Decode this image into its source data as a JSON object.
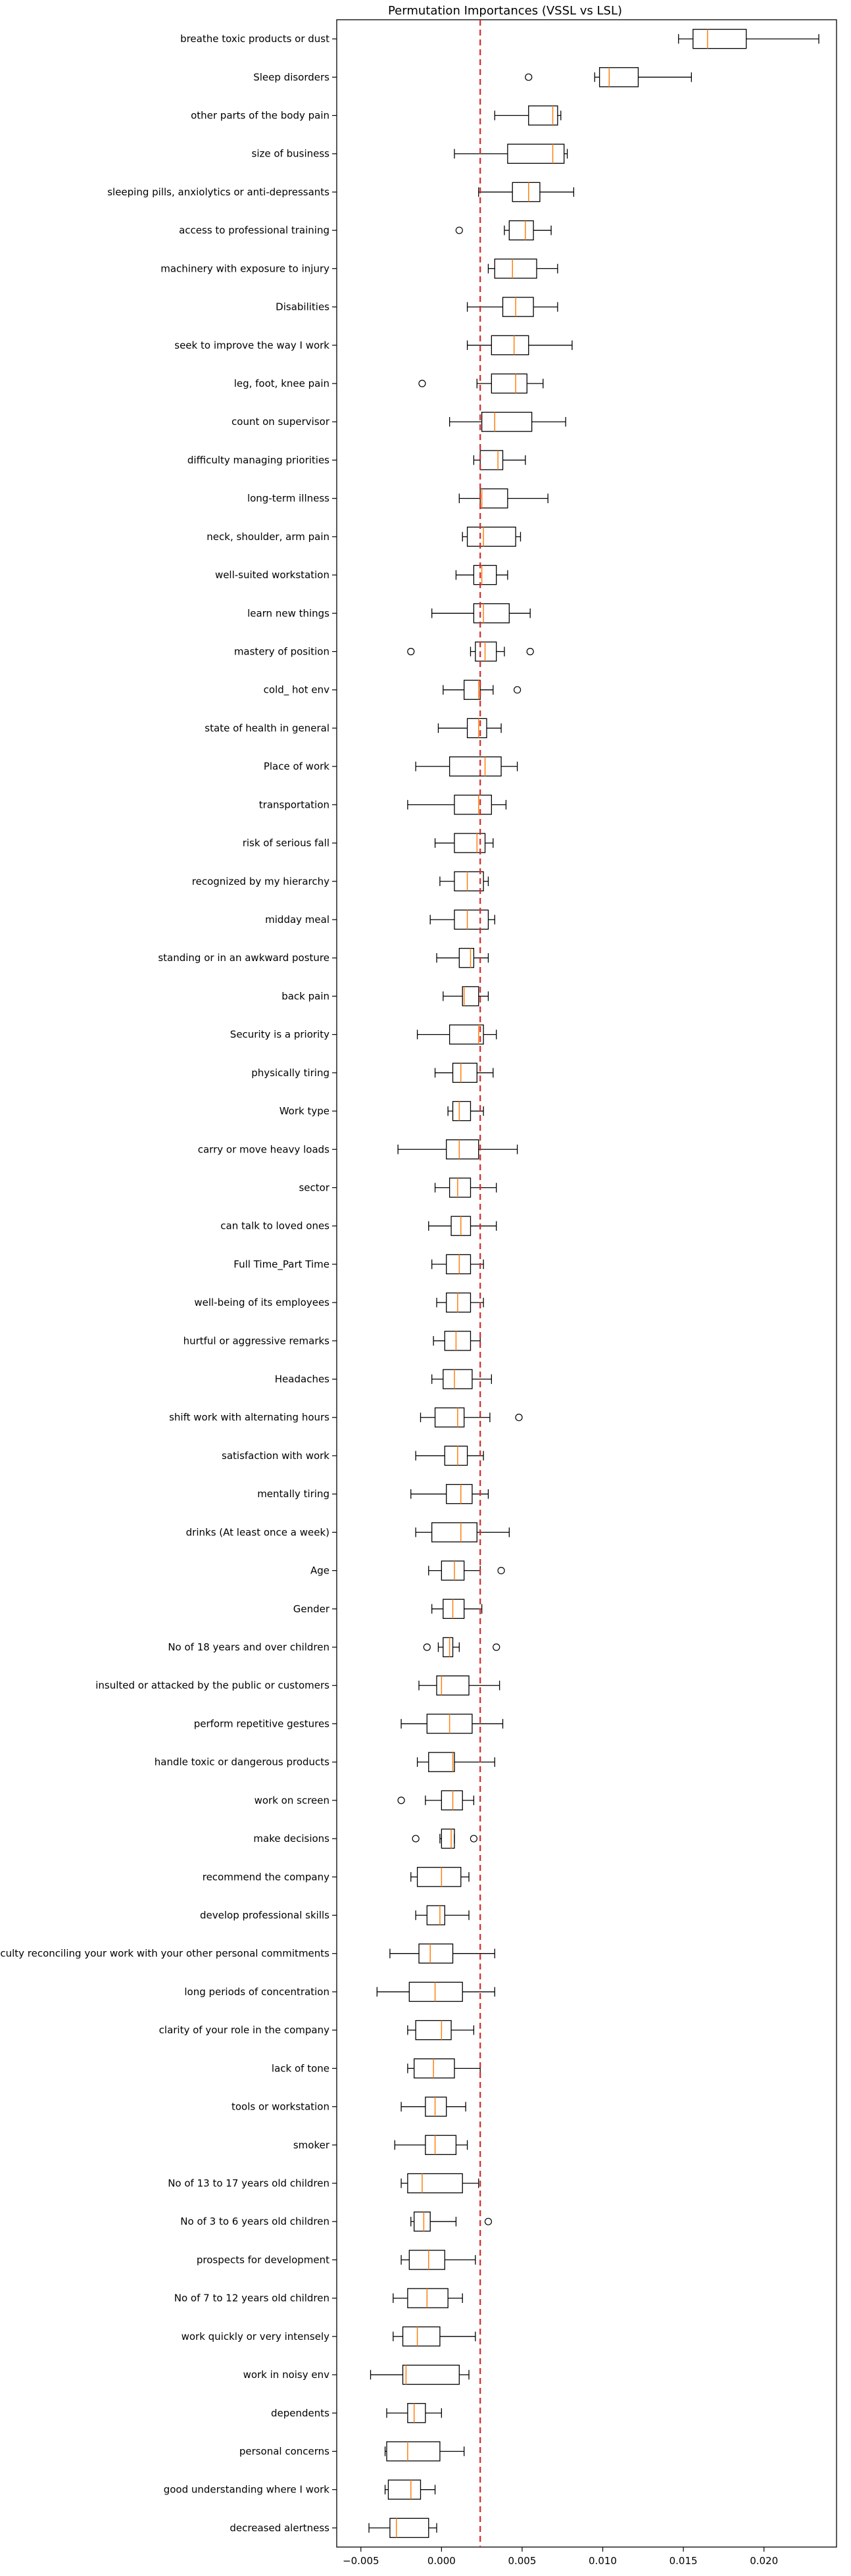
{
  "chart_data": {
    "type": "boxplot",
    "orientation": "horizontal",
    "title": "Permutation Importances (VSSL vs LSL)",
    "xlabel": "",
    "ylabel": "",
    "xlim": [
      -0.0065,
      0.0245
    ],
    "x_ticks": [
      -0.005,
      0.0,
      0.005,
      0.01,
      0.015,
      0.02
    ],
    "x_tick_labels": [
      "−0.005",
      "0.000",
      "0.005",
      "0.010",
      "0.015",
      "0.020"
    ],
    "reference_line": {
      "x": 0.0024,
      "style": "dashed",
      "color": "#d62728"
    },
    "colors": {
      "box": "#000000",
      "median": "#ff7f0e",
      "reference": "#d62728"
    },
    "features": [
      {
        "label": "breathe toxic products or dust",
        "whisker_low": 0.0147,
        "q1": 0.0156,
        "median": 0.0165,
        "q3": 0.0189,
        "whisker_high": 0.0234,
        "outliers": []
      },
      {
        "label": "Sleep disorders",
        "whisker_low": 0.0095,
        "q1": 0.0098,
        "median": 0.0104,
        "q3": 0.0122,
        "whisker_high": 0.0155,
        "outliers": [
          0.0054
        ]
      },
      {
        "label": "other parts of the body pain",
        "whisker_low": 0.0033,
        "q1": 0.0054,
        "median": 0.0069,
        "q3": 0.0072,
        "whisker_high": 0.0074,
        "outliers": []
      },
      {
        "label": "size of business",
        "whisker_low": 0.0008,
        "q1": 0.0041,
        "median": 0.0069,
        "q3": 0.0076,
        "whisker_high": 0.0078,
        "outliers": []
      },
      {
        "label": "sleeping pills, anxiolytics or anti-depressants",
        "whisker_low": 0.0023,
        "q1": 0.0044,
        "median": 0.0054,
        "q3": 0.0061,
        "whisker_high": 0.0082,
        "outliers": []
      },
      {
        "label": "access to professional training",
        "whisker_low": 0.0039,
        "q1": 0.0042,
        "median": 0.0052,
        "q3": 0.0057,
        "whisker_high": 0.0068,
        "outliers": [
          0.0011
        ]
      },
      {
        "label": "machinery with exposure to injury",
        "whisker_low": 0.0029,
        "q1": 0.0033,
        "median": 0.0044,
        "q3": 0.0059,
        "whisker_high": 0.0072,
        "outliers": []
      },
      {
        "label": "Disabilities",
        "whisker_low": 0.0016,
        "q1": 0.0038,
        "median": 0.0046,
        "q3": 0.0057,
        "whisker_high": 0.0072,
        "outliers": []
      },
      {
        "label": "seek to improve the way I work",
        "whisker_low": 0.0016,
        "q1": 0.0031,
        "median": 0.0045,
        "q3": 0.0054,
        "whisker_high": 0.0081,
        "outliers": []
      },
      {
        "label": "leg, foot, knee pain",
        "whisker_low": 0.0022,
        "q1": 0.0031,
        "median": 0.0046,
        "q3": 0.0053,
        "whisker_high": 0.0063,
        "outliers": [
          -0.0012
        ]
      },
      {
        "label": "count on supervisor",
        "whisker_low": 0.0005,
        "q1": 0.0025,
        "median": 0.0033,
        "q3": 0.0056,
        "whisker_high": 0.0077,
        "outliers": []
      },
      {
        "label": "difficulty managing priorities",
        "whisker_low": 0.002,
        "q1": 0.0024,
        "median": 0.0035,
        "q3": 0.0038,
        "whisker_high": 0.0052,
        "outliers": []
      },
      {
        "label": "long-term illness",
        "whisker_low": 0.0011,
        "q1": 0.0024,
        "median": 0.0025,
        "q3": 0.0041,
        "whisker_high": 0.0066,
        "outliers": []
      },
      {
        "label": "neck, shoulder, arm pain",
        "whisker_low": 0.0013,
        "q1": 0.0016,
        "median": 0.0026,
        "q3": 0.0046,
        "whisker_high": 0.0049,
        "outliers": []
      },
      {
        "label": "well-suited workstation",
        "whisker_low": 0.0009,
        "q1": 0.002,
        "median": 0.0025,
        "q3": 0.0034,
        "whisker_high": 0.0041,
        "outliers": []
      },
      {
        "label": "learn new things",
        "whisker_low": -0.0006,
        "q1": 0.002,
        "median": 0.0026,
        "q3": 0.0042,
        "whisker_high": 0.0055,
        "outliers": []
      },
      {
        "label": "mastery of position",
        "whisker_low": 0.0018,
        "q1": 0.0021,
        "median": 0.0027,
        "q3": 0.0034,
        "whisker_high": 0.0039,
        "outliers": [
          -0.0019,
          0.0055
        ]
      },
      {
        "label": "cold_ hot env",
        "whisker_low": 0.0001,
        "q1": 0.0014,
        "median": 0.0023,
        "q3": 0.0024,
        "whisker_high": 0.0032,
        "outliers": [
          0.0047
        ]
      },
      {
        "label": "state of health in general",
        "whisker_low": -0.0002,
        "q1": 0.0016,
        "median": 0.0023,
        "q3": 0.0028,
        "whisker_high": 0.0037,
        "outliers": []
      },
      {
        "label": "Place of work",
        "whisker_low": -0.0016,
        "q1": 0.0005,
        "median": 0.0027,
        "q3": 0.0037,
        "whisker_high": 0.0047,
        "outliers": []
      },
      {
        "label": "transportation",
        "whisker_low": -0.0021,
        "q1": 0.0008,
        "median": 0.0023,
        "q3": 0.0031,
        "whisker_high": 0.004,
        "outliers": []
      },
      {
        "label": "risk of serious fall",
        "whisker_low": -0.0004,
        "q1": 0.0008,
        "median": 0.0022,
        "q3": 0.0027,
        "whisker_high": 0.0032,
        "outliers": []
      },
      {
        "label": "recognized by my hierarchy",
        "whisker_low": -0.0001,
        "q1": 0.0008,
        "median": 0.0016,
        "q3": 0.0026,
        "whisker_high": 0.0029,
        "outliers": []
      },
      {
        "label": "midday meal",
        "whisker_low": -0.0007,
        "q1": 0.0008,
        "median": 0.0016,
        "q3": 0.0029,
        "whisker_high": 0.0033,
        "outliers": []
      },
      {
        "label": "standing or in an awkward posture",
        "whisker_low": -0.0003,
        "q1": 0.0011,
        "median": 0.0018,
        "q3": 0.002,
        "whisker_high": 0.0029,
        "outliers": []
      },
      {
        "label": "back pain",
        "whisker_low": 0.0001,
        "q1": 0.0013,
        "median": 0.0014,
        "q3": 0.0023,
        "whisker_high": 0.0029,
        "outliers": []
      },
      {
        "label": "Security is a priority",
        "whisker_low": -0.0015,
        "q1": 0.0005,
        "median": 0.0023,
        "q3": 0.0026,
        "whisker_high": 0.0034,
        "outliers": []
      },
      {
        "label": "physically tiring",
        "whisker_low": -0.0004,
        "q1": 0.0007,
        "median": 0.0012,
        "q3": 0.0022,
        "whisker_high": 0.0032,
        "outliers": []
      },
      {
        "label": "Work type",
        "whisker_low": 0.0004,
        "q1": 0.0007,
        "median": 0.0011,
        "q3": 0.0018,
        "whisker_high": 0.0026,
        "outliers": []
      },
      {
        "label": "carry or move heavy loads",
        "whisker_low": -0.0027,
        "q1": 0.0003,
        "median": 0.0011,
        "q3": 0.0023,
        "whisker_high": 0.0047,
        "outliers": []
      },
      {
        "label": "sector",
        "whisker_low": -0.0004,
        "q1": 0.0005,
        "median": 0.001,
        "q3": 0.0018,
        "whisker_high": 0.0034,
        "outliers": []
      },
      {
        "label": "can talk to loved ones",
        "whisker_low": -0.0008,
        "q1": 0.0006,
        "median": 0.0012,
        "q3": 0.0018,
        "whisker_high": 0.0034,
        "outliers": []
      },
      {
        "label": "Full Time_Part Time",
        "whisker_low": -0.0006,
        "q1": 0.0003,
        "median": 0.0011,
        "q3": 0.0018,
        "whisker_high": 0.0026,
        "outliers": []
      },
      {
        "label": "well-being of its employees",
        "whisker_low": -0.0003,
        "q1": 0.0003,
        "median": 0.001,
        "q3": 0.0018,
        "whisker_high": 0.0026,
        "outliers": []
      },
      {
        "label": "hurtful or aggressive remarks",
        "whisker_low": -0.0005,
        "q1": 0.0002,
        "median": 0.0009,
        "q3": 0.0018,
        "whisker_high": 0.0024,
        "outliers": []
      },
      {
        "label": "Headaches",
        "whisker_low": -0.0006,
        "q1": 0.0001,
        "median": 0.0008,
        "q3": 0.0019,
        "whisker_high": 0.0031,
        "outliers": []
      },
      {
        "label": "shift work with alternating hours",
        "whisker_low": -0.0013,
        "q1": -0.0004,
        "median": 0.001,
        "q3": 0.0014,
        "whisker_high": 0.003,
        "outliers": [
          0.0048
        ]
      },
      {
        "label": "satisfaction with work",
        "whisker_low": -0.0016,
        "q1": 0.0002,
        "median": 0.001,
        "q3": 0.0016,
        "whisker_high": 0.0026,
        "outliers": []
      },
      {
        "label": "mentally tiring",
        "whisker_low": -0.0019,
        "q1": 0.0003,
        "median": 0.0012,
        "q3": 0.0019,
        "whisker_high": 0.0029,
        "outliers": []
      },
      {
        "label": "drinks (At least once a week)",
        "whisker_low": -0.0016,
        "q1": -0.0006,
        "median": 0.0012,
        "q3": 0.0022,
        "whisker_high": 0.0042,
        "outliers": []
      },
      {
        "label": "Age",
        "whisker_low": -0.0008,
        "q1": 0.0,
        "median": 0.0008,
        "q3": 0.0014,
        "whisker_high": 0.0024,
        "outliers": [
          0.0037
        ]
      },
      {
        "label": "Gender",
        "whisker_low": -0.0006,
        "q1": 0.0001,
        "median": 0.0007,
        "q3": 0.0014,
        "whisker_high": 0.0025,
        "outliers": []
      },
      {
        "label": "No of 18 years and over children",
        "whisker_low": -0.0002,
        "q1": 0.0001,
        "median": 0.0005,
        "q3": 0.0007,
        "whisker_high": 0.0011,
        "outliers": [
          -0.0009,
          0.0034
        ]
      },
      {
        "label": "insulted or attacked by the public or customers",
        "whisker_low": -0.0014,
        "q1": -0.0003,
        "median": 0.0,
        "q3": 0.0017,
        "whisker_high": 0.0036,
        "outliers": []
      },
      {
        "label": "perform repetitive gestures",
        "whisker_low": -0.0025,
        "q1": -0.0009,
        "median": 0.0005,
        "q3": 0.0019,
        "whisker_high": 0.0038,
        "outliers": []
      },
      {
        "label": "handle toxic or dangerous products",
        "whisker_low": -0.0015,
        "q1": -0.0008,
        "median": 0.0007,
        "q3": 0.0008,
        "whisker_high": 0.0033,
        "outliers": []
      },
      {
        "label": "work on screen",
        "whisker_low": -0.001,
        "q1": 0.0,
        "median": 0.0007,
        "q3": 0.0013,
        "whisker_high": 0.002,
        "outliers": [
          -0.0025
        ]
      },
      {
        "label": "make decisions",
        "whisker_low": -0.0001,
        "q1": 0.0,
        "median": 0.0006,
        "q3": 0.0008,
        "whisker_high": 0.0008,
        "outliers": [
          -0.0016,
          0.002
        ]
      },
      {
        "label": "recommend the company",
        "whisker_low": -0.0019,
        "q1": -0.0015,
        "median": 0.0,
        "q3": 0.0012,
        "whisker_high": 0.0017,
        "outliers": []
      },
      {
        "label": "develop professional skills",
        "whisker_low": -0.0016,
        "q1": -0.0009,
        "median": -0.0001,
        "q3": 0.0002,
        "whisker_high": 0.0017,
        "outliers": []
      },
      {
        "label": "difficulty reconciling your work with your other personal commitments",
        "whisker_low": -0.0032,
        "q1": -0.0014,
        "median": -0.0007,
        "q3": 0.0007,
        "whisker_high": 0.0033,
        "outliers": []
      },
      {
        "label": "long periods of concentration",
        "whisker_low": -0.004,
        "q1": -0.002,
        "median": -0.0004,
        "q3": 0.0013,
        "whisker_high": 0.0033,
        "outliers": []
      },
      {
        "label": "clarity of your role in the company",
        "whisker_low": -0.0021,
        "q1": -0.0016,
        "median": 0.0,
        "q3": 0.0006,
        "whisker_high": 0.002,
        "outliers": []
      },
      {
        "label": "lack of tone",
        "whisker_low": -0.0021,
        "q1": -0.0017,
        "median": -0.0005,
        "q3": 0.0008,
        "whisker_high": 0.0024,
        "outliers": []
      },
      {
        "label": "tools or workstation",
        "whisker_low": -0.0025,
        "q1": -0.001,
        "median": -0.0004,
        "q3": 0.0003,
        "whisker_high": 0.0015,
        "outliers": []
      },
      {
        "label": "smoker",
        "whisker_low": -0.0029,
        "q1": -0.001,
        "median": -0.0004,
        "q3": 0.0009,
        "whisker_high": 0.0016,
        "outliers": []
      },
      {
        "label": "No of 13 to 17 years old children",
        "whisker_low": -0.0025,
        "q1": -0.0021,
        "median": -0.0012,
        "q3": 0.0013,
        "whisker_high": 0.0023,
        "outliers": []
      },
      {
        "label": "No of 3 to 6 years old children",
        "whisker_low": -0.0019,
        "q1": -0.0017,
        "median": -0.0011,
        "q3": -0.0007,
        "whisker_high": 0.0009,
        "outliers": [
          0.0029
        ]
      },
      {
        "label": "prospects for development",
        "whisker_low": -0.0025,
        "q1": -0.002,
        "median": -0.0008,
        "q3": 0.0002,
        "whisker_high": 0.0021,
        "outliers": []
      },
      {
        "label": "No of 7 to 12 years old children",
        "whisker_low": -0.003,
        "q1": -0.0021,
        "median": -0.0009,
        "q3": 0.0004,
        "whisker_high": 0.0013,
        "outliers": []
      },
      {
        "label": "work quickly or very intensely",
        "whisker_low": -0.003,
        "q1": -0.0024,
        "median": -0.0015,
        "q3": -0.0001,
        "whisker_high": 0.0021,
        "outliers": []
      },
      {
        "label": "work in noisy env",
        "whisker_low": -0.0044,
        "q1": -0.0024,
        "median": -0.0022,
        "q3": 0.0011,
        "whisker_high": 0.0017,
        "outliers": []
      },
      {
        "label": "dependents",
        "whisker_low": -0.0034,
        "q1": -0.0021,
        "median": -0.0017,
        "q3": -0.001,
        "whisker_high": 0.0,
        "outliers": []
      },
      {
        "label": "personal concerns",
        "whisker_low": -0.0035,
        "q1": -0.0034,
        "median": -0.0021,
        "q3": -0.0001,
        "whisker_high": 0.0014,
        "outliers": []
      },
      {
        "label": "good understanding where I work",
        "whisker_low": -0.0035,
        "q1": -0.0033,
        "median": -0.0019,
        "q3": -0.0013,
        "whisker_high": -0.0004,
        "outliers": []
      },
      {
        "label": "decreased alertness",
        "whisker_low": -0.0045,
        "q1": -0.0032,
        "median": -0.0028,
        "q3": -0.0008,
        "whisker_high": -0.0003,
        "outliers": []
      }
    ]
  }
}
